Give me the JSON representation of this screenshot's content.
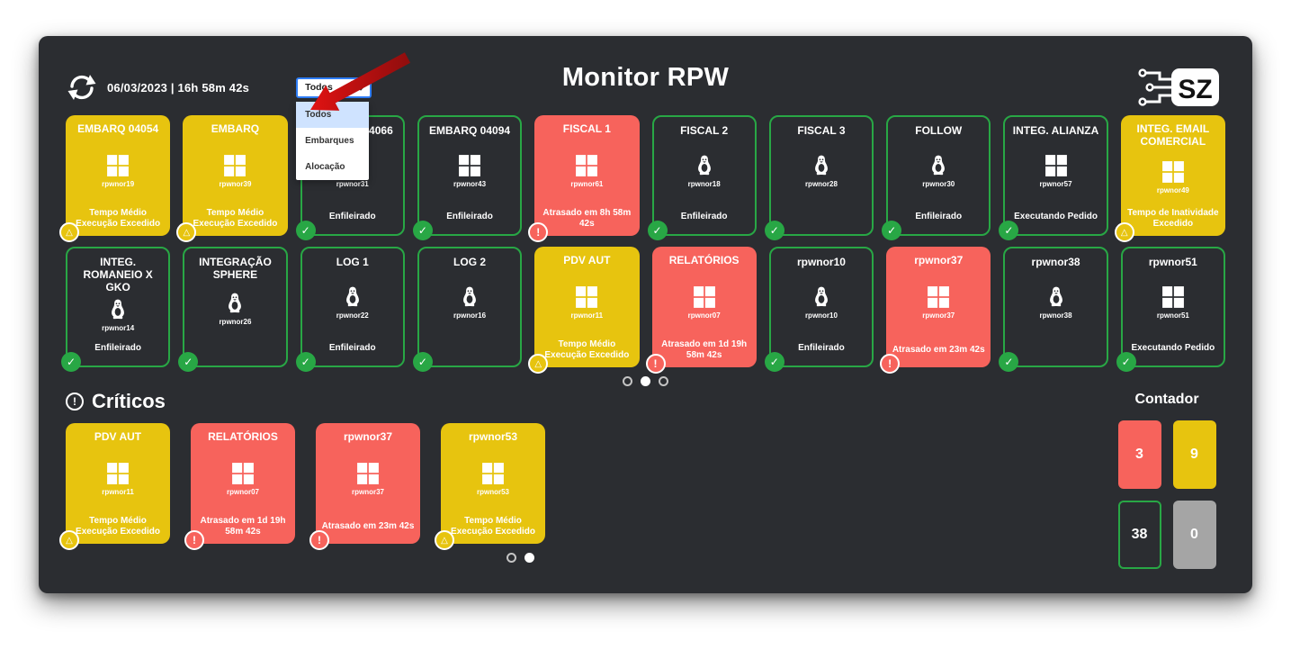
{
  "header": {
    "datetime": "06/03/2023 | 16h 58m 42s",
    "title": "Monitor RPW",
    "logo_text": "SZ",
    "filter": {
      "selected": "Todos",
      "options": [
        "Todos",
        "Embarques",
        "Alocação"
      ]
    }
  },
  "colors": {
    "panel_bg": "#2b2d31",
    "ok_green": "#28a745",
    "warning_yellow": "#e7c40f",
    "error_red": "#f7635c",
    "idle_gray": "#a5a5a5",
    "select_border_blue": "#2e7df6",
    "dropdown_highlight": "#cfe3ff",
    "annotation_arrow_red": "#c41111"
  },
  "grid": {
    "dots": [
      false,
      true,
      false
    ],
    "cards": [
      {
        "title": "EMBARQ 04054",
        "os": "windows",
        "machine": "rpwnor19",
        "status": "Tempo Médio Execução Excedido",
        "state": "warning"
      },
      {
        "title": "EMBARQ",
        "os": "windows",
        "machine": "rpwnor39",
        "status": "Tempo Médio Execução Excedido",
        "state": "warning"
      },
      {
        "title": "EMBARQ 04066",
        "os": "windows",
        "machine": "rpwnor31",
        "status": "Enfileirado",
        "state": "ok"
      },
      {
        "title": "EMBARQ 04094",
        "os": "windows",
        "machine": "rpwnor43",
        "status": "Enfileirado",
        "state": "ok"
      },
      {
        "title": "FISCAL 1",
        "os": "windows",
        "machine": "rpwnor61",
        "status": "Atrasado em 8h 58m 42s",
        "state": "error"
      },
      {
        "title": "FISCAL 2",
        "os": "linux",
        "machine": "rpwnor18",
        "status": "Enfileirado",
        "state": "ok"
      },
      {
        "title": "FISCAL 3",
        "os": "linux",
        "machine": "rpwnor28",
        "status": "",
        "state": "ok"
      },
      {
        "title": "FOLLOW",
        "os": "linux",
        "machine": "rpwnor30",
        "status": "Enfileirado",
        "state": "ok"
      },
      {
        "title": "INTEG. ALIANZA",
        "os": "windows",
        "machine": "rpwnor57",
        "status": "Executando Pedido",
        "state": "ok"
      },
      {
        "title": "INTEG. EMAIL COMERCIAL",
        "os": "windows",
        "machine": "rpwnor49",
        "status": "Tempo de Inatividade Excedido",
        "state": "warning"
      },
      {
        "title": "INTEG. ROMANEIO X GKO",
        "os": "linux",
        "machine": "rpwnor14",
        "status": "Enfileirado",
        "state": "ok"
      },
      {
        "title": "INTEGRAÇÃO SPHERE",
        "os": "linux",
        "machine": "rpwnor26",
        "status": "",
        "state": "ok"
      },
      {
        "title": "LOG 1",
        "os": "linux",
        "machine": "rpwnor22",
        "status": "Enfileirado",
        "state": "ok"
      },
      {
        "title": "LOG 2",
        "os": "linux",
        "machine": "rpwnor16",
        "status": "",
        "state": "ok"
      },
      {
        "title": "PDV AUT",
        "os": "windows",
        "machine": "rpwnor11",
        "status": "Tempo Médio Execução Excedido",
        "state": "warning"
      },
      {
        "title": "RELATÓRIOS",
        "os": "windows",
        "machine": "rpwnor07",
        "status": "Atrasado em 1d 19h 58m 42s",
        "state": "error"
      },
      {
        "title": "rpwnor10",
        "os": "linux",
        "machine": "rpwnor10",
        "status": "Enfileirado",
        "state": "ok"
      },
      {
        "title": "rpwnor37",
        "os": "windows",
        "machine": "rpwnor37",
        "status": "Atrasado em 23m 42s",
        "state": "error"
      },
      {
        "title": "rpwnor38",
        "os": "linux",
        "machine": "rpwnor38",
        "status": "",
        "state": "ok"
      },
      {
        "title": "rpwnor51",
        "os": "windows",
        "machine": "rpwnor51",
        "status": "Executando Pedido",
        "state": "ok"
      }
    ]
  },
  "criticos": {
    "title": "Críticos",
    "dots": [
      false,
      true
    ],
    "cards": [
      {
        "title": "PDV AUT",
        "os": "windows",
        "machine": "rpwnor11",
        "status": "Tempo Médio Execução Excedido",
        "state": "warning"
      },
      {
        "title": "RELATÓRIOS",
        "os": "windows",
        "machine": "rpwnor07",
        "status": "Atrasado em 1d 19h 58m 42s",
        "state": "error"
      },
      {
        "title": "rpwnor37",
        "os": "windows",
        "machine": "rpwnor37",
        "status": "Atrasado em 23m 42s",
        "state": "error"
      },
      {
        "title": "rpwnor53",
        "os": "windows",
        "machine": "rpwnor53",
        "status": "Tempo Médio Execução Excedido",
        "state": "warning"
      }
    ]
  },
  "contador": {
    "title": "Contador",
    "counters": [
      {
        "value": "3",
        "type": "error"
      },
      {
        "value": "9",
        "type": "warning"
      },
      {
        "value": "38",
        "type": "ok"
      },
      {
        "value": "0",
        "type": "idle"
      }
    ]
  }
}
